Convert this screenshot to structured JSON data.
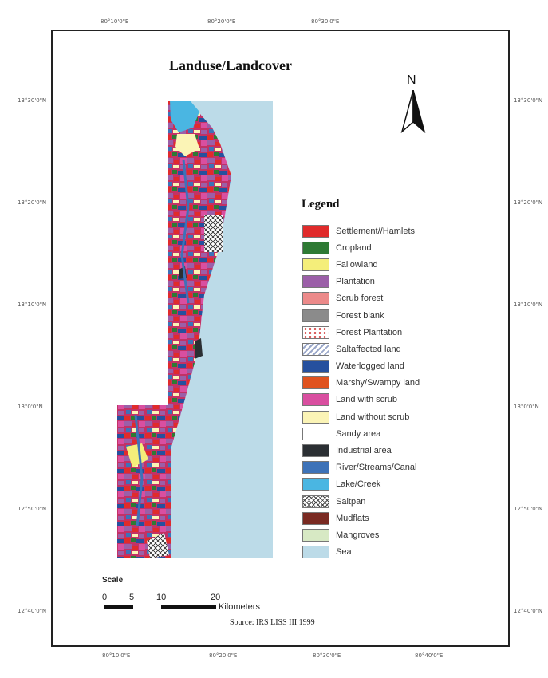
{
  "title": "Landuse/Landcover",
  "north": {
    "label": "N",
    "icon": "north-arrow-icon"
  },
  "graticule": {
    "top": [
      "80°10'0\"E",
      "80°20'0\"E",
      "80°30'0\"E"
    ],
    "bottom": [
      "80°10'0\"E",
      "80°20'0\"E",
      "80°30'0\"E",
      "80°40'0\"E"
    ],
    "left": [
      "13°30'0\"N",
      "13°20'0\"N",
      "13°10'0\"N",
      "13°0'0\"N",
      "12°50'0\"N",
      "12°40'0\"N"
    ],
    "right": [
      "13°30'0\"N",
      "13°20'0\"N",
      "13°10'0\"N",
      "13°0'0\"N",
      "12°50'0\"N",
      "12°40'0\"N"
    ]
  },
  "legend": {
    "title": "Legend",
    "items": [
      {
        "label": "Settlement//Hamlets",
        "color": "#e02b2b",
        "pattern": "solid"
      },
      {
        "label": "Cropland",
        "color": "#2e7a34",
        "pattern": "solid"
      },
      {
        "label": "Fallowland",
        "color": "#f4ee7a",
        "pattern": "solid"
      },
      {
        "label": "Plantation",
        "color": "#9b5fa8",
        "pattern": "solid"
      },
      {
        "label": "Scrub forest",
        "color": "#ec8a8a",
        "pattern": "solid"
      },
      {
        "label": "Forest blank",
        "color": "#8b8b8b",
        "pattern": "solid"
      },
      {
        "label": "Forest Plantation",
        "color": "#d23c3c",
        "pattern": "dots"
      },
      {
        "label": "Saltaffected land",
        "color": "#9aa7c9",
        "pattern": "hatch"
      },
      {
        "label": "Waterlogged land",
        "color": "#26509e",
        "pattern": "solid"
      },
      {
        "label": "Marshy/Swampy land",
        "color": "#e0531f",
        "pattern": "solid"
      },
      {
        "label": "Land with scrub",
        "color": "#d94fa0",
        "pattern": "solid"
      },
      {
        "label": "Land without scrub",
        "color": "#fbf4b6",
        "pattern": "solid"
      },
      {
        "label": "Sandy area",
        "color": "#ffffff",
        "pattern": "solid"
      },
      {
        "label": "Industrial area",
        "color": "#2b2f33",
        "pattern": "solid"
      },
      {
        "label": "River/Streams/Canal",
        "color": "#3d72b8",
        "pattern": "solid"
      },
      {
        "label": "Lake/Creek",
        "color": "#4ab6e2",
        "pattern": "solid"
      },
      {
        "label": "Saltpan",
        "color": "#444444",
        "pattern": "crosshatch"
      },
      {
        "label": "Mudflats",
        "color": "#7a2a22",
        "pattern": "solid"
      },
      {
        "label": "Mangroves",
        "color": "#d7e9c4",
        "pattern": "solid"
      },
      {
        "label": "Sea",
        "color": "#bcdbe8",
        "pattern": "solid"
      }
    ]
  },
  "scale": {
    "title": "Scale",
    "ticks": [
      "0",
      "5",
      "10",
      "20"
    ],
    "unit": "Kilometers"
  },
  "source": "Source: IRS LISS III 1999"
}
